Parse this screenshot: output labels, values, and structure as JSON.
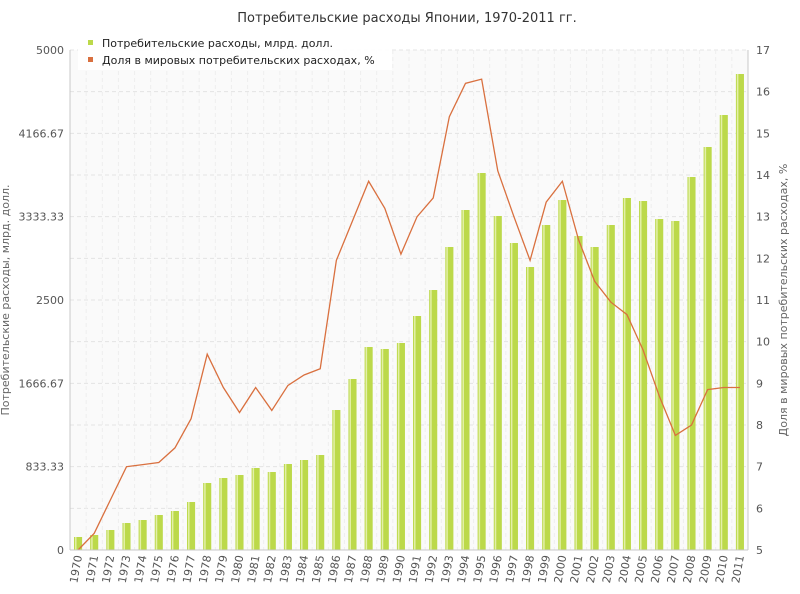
{
  "chart_data": {
    "type": "bar+line",
    "title": "Потребительские расходы Японии, 1970-2011 гг.",
    "ylabel_left": "Потребительские расходы, млрд. долл.",
    "ylabel_right": "Доля в мировых потребительских расходах, %",
    "ylim_left": [
      0,
      5000
    ],
    "ylim_right": [
      5,
      17
    ],
    "yticks_left": [
      "0",
      "833.33",
      "1666.67",
      "2500",
      "3333.33",
      "4166.67",
      "5000"
    ],
    "yticks_right": [
      "5",
      "6",
      "7",
      "8",
      "9",
      "10",
      "11",
      "12",
      "13",
      "14",
      "15",
      "16",
      "17"
    ],
    "legend_position": "top-left",
    "grid": true,
    "categories": [
      "1970",
      "1971",
      "1972",
      "1973",
      "1974",
      "1975",
      "1976",
      "1977",
      "1978",
      "1979",
      "1980",
      "1981",
      "1982",
      "1983",
      "1984",
      "1985",
      "1986",
      "1987",
      "1988",
      "1989",
      "1990",
      "1991",
      "1992",
      "1993",
      "1994",
      "1995",
      "1996",
      "1997",
      "1998",
      "1999",
      "2000",
      "2001",
      "2002",
      "2003",
      "2004",
      "2005",
      "2006",
      "2007",
      "2008",
      "2009",
      "2010",
      "2011"
    ],
    "series": [
      {
        "name": "Потребительские расходы, млрд. долл.",
        "type": "bar",
        "axis": "left",
        "color": "#bcd94a",
        "values": [
          130,
          150,
          200,
          270,
          300,
          350,
          390,
          480,
          670,
          720,
          750,
          820,
          780,
          860,
          900,
          950,
          1400,
          1710,
          2030,
          2010,
          2070,
          2340,
          2600,
          3030,
          3400,
          3770,
          3340,
          3070,
          2830,
          3250,
          3500,
          3140,
          3030,
          3250,
          3520,
          3490,
          3310,
          3290,
          3730,
          4030,
          4350,
          4760
        ]
      },
      {
        "name": "Доля в мировых потребительских расходах, %",
        "type": "line",
        "axis": "right",
        "color": "#d9703f",
        "values": [
          5.0,
          5.4,
          6.2,
          7.0,
          7.05,
          7.1,
          7.45,
          8.15,
          9.7,
          8.9,
          8.3,
          8.9,
          8.35,
          8.95,
          9.2,
          9.35,
          11.95,
          12.9,
          13.85,
          13.2,
          12.1,
          13.0,
          13.45,
          15.4,
          16.2,
          16.3,
          14.1,
          13.0,
          11.95,
          13.35,
          13.85,
          12.45,
          11.45,
          10.95,
          10.65,
          9.8,
          8.7,
          7.75,
          8.0,
          8.85,
          8.9,
          8.9
        ]
      }
    ]
  }
}
